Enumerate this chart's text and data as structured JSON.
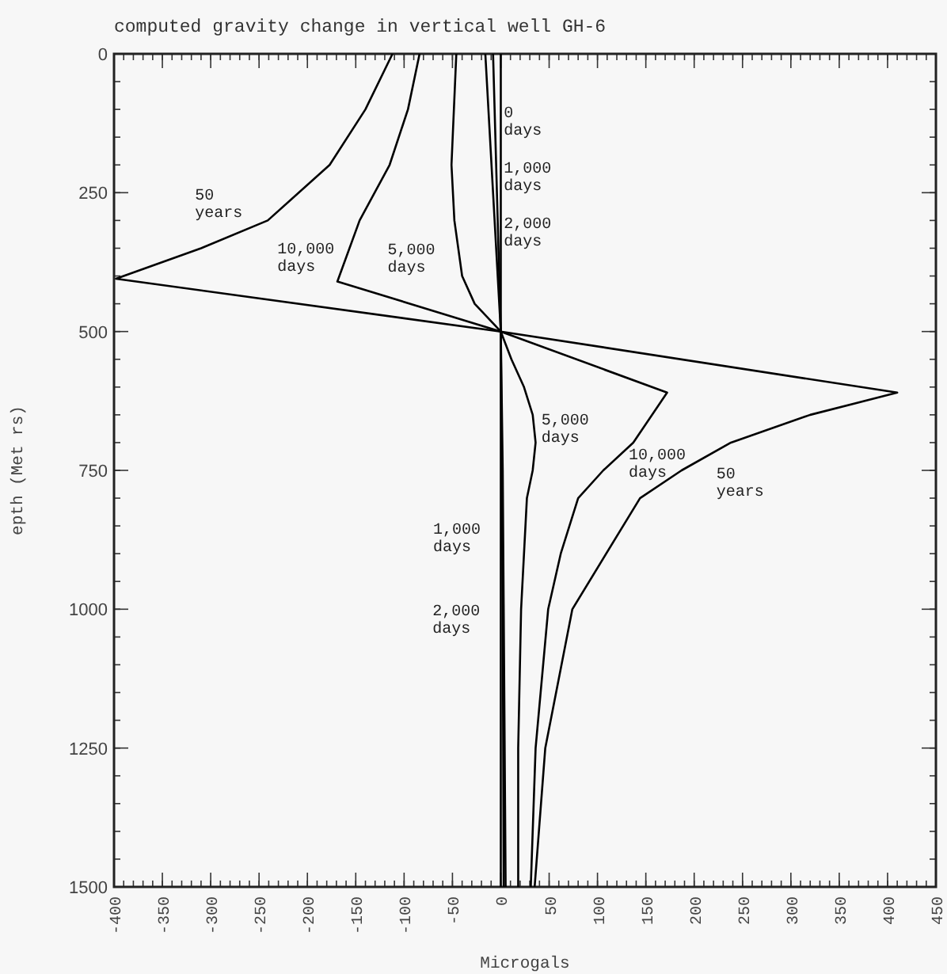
{
  "chart_data": {
    "type": "line",
    "title": "computed gravity change in vertical well GH-6",
    "xlabel": "Microgals",
    "ylabel": "epth (Met rs)",
    "xlim": [
      -400,
      450
    ],
    "ylim": [
      1500,
      0
    ],
    "xticks": [
      {
        "value": -400,
        "label": "-400"
      },
      {
        "value": -350,
        "label": "-350"
      },
      {
        "value": -300,
        "label": "-300"
      },
      {
        "value": -250,
        "label": "-250"
      },
      {
        "value": -200,
        "label": "-200"
      },
      {
        "value": -150,
        "label": "-150"
      },
      {
        "value": -100,
        "label": "-100"
      },
      {
        "value": -50,
        "label": "-50"
      },
      {
        "value": 0,
        "label": "0"
      },
      {
        "value": 50,
        "label": "50"
      },
      {
        "value": 100,
        "label": "100"
      },
      {
        "value": 150,
        "label": "150"
      },
      {
        "value": 200,
        "label": "200"
      },
      {
        "value": 250,
        "label": "250"
      },
      {
        "value": 300,
        "label": "300"
      },
      {
        "value": 350,
        "label": "350"
      },
      {
        "value": 400,
        "label": "400"
      },
      {
        "value": 450,
        "label": "450"
      }
    ],
    "yticks": [
      0,
      250,
      500,
      750,
      1000,
      1250,
      1500
    ],
    "grid": false,
    "marker": "none",
    "line_style": "solid",
    "series": [
      {
        "color": "#000000",
        "x": [
          0,
          0,
          0
        ],
        "values": [
          0,
          500,
          1500
        ]
      },
      {
        "color": "#000000",
        "x": [
          -8,
          -4,
          0,
          1,
          2,
          3
        ],
        "values": [
          0,
          250,
          500,
          750,
          1000,
          1500
        ]
      },
      {
        "color": "#000000",
        "x": [
          -16,
          -8,
          0,
          2,
          3,
          5
        ],
        "values": [
          0,
          250,
          500,
          750,
          1000,
          1500
        ]
      },
      {
        "color": "#000000",
        "x": [
          -46,
          -51,
          -48,
          -40,
          -27,
          0,
          11,
          24,
          33,
          36,
          33,
          27,
          21,
          18,
          18
        ],
        "values": [
          0,
          200,
          300,
          400,
          450,
          500,
          550,
          600,
          650,
          700,
          750,
          800,
          1000,
          1250,
          1500
        ]
      },
      {
        "color": "#000000",
        "x": [
          -84,
          -96,
          -115,
          -146,
          -169,
          0,
          172,
          137,
          106,
          80,
          62,
          49,
          36,
          31
        ],
        "values": [
          0,
          100,
          200,
          300,
          410,
          500,
          610,
          700,
          750,
          800,
          900,
          1000,
          1250,
          1500
        ]
      },
      {
        "color": "#000000",
        "x": [
          -112,
          -140,
          -177,
          -241,
          -310,
          -398,
          0,
          410,
          320,
          238,
          187,
          144,
          74,
          46,
          35
        ],
        "values": [
          0,
          100,
          200,
          300,
          350,
          405,
          500,
          610,
          650,
          700,
          750,
          800,
          1000,
          1250,
          1500
        ]
      }
    ],
    "annotations": [
      {
        "text": "0\ndays",
        "x": 3,
        "y": 120
      },
      {
        "text": "1,000\ndays",
        "x": 3,
        "y": 220
      },
      {
        "text": "2,000\ndays",
        "x": 3,
        "y": 320
      },
      {
        "text": "50\nyears",
        "x": -241,
        "y": 300
      },
      {
        "text": "10,000\ndays",
        "x": -146,
        "y": 300
      },
      {
        "text": "5,000\ndays",
        "x": -40,
        "y": 400
      },
      {
        "text": "5,000\ndays",
        "x": 42,
        "y": 673
      },
      {
        "text": "10,000\ndays",
        "x": 106,
        "y": 750
      },
      {
        "text": "50\nyears",
        "x": 187,
        "y": 750
      },
      {
        "text": "1,000\ndays",
        "x": 2,
        "y": 870
      },
      {
        "text": "2,000\ndays",
        "x": 3,
        "y": 1000
      }
    ]
  }
}
